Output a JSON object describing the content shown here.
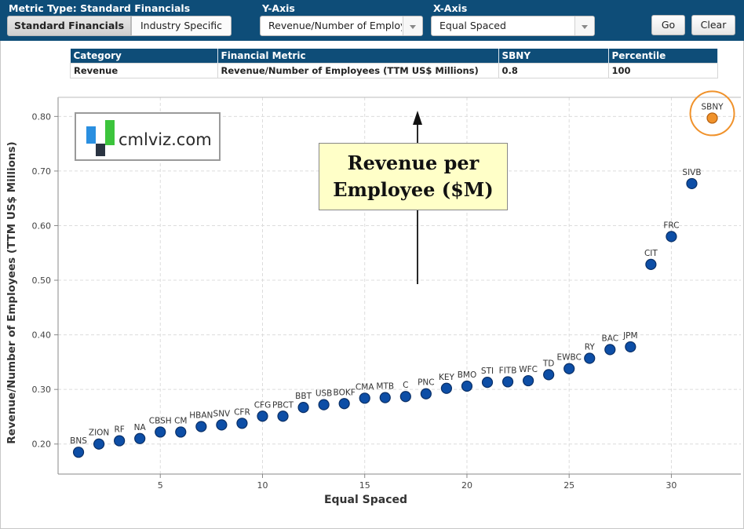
{
  "toolbar": {
    "metric_type_label": "Metric Type: Standard Financials",
    "yaxis_label": "Y-Axis",
    "xaxis_label": "X-Axis",
    "tab_standard": "Standard Financials",
    "tab_industry": "Industry Specific",
    "yaxis_value": "Revenue/Number of Employees (TTM US$ Millions)",
    "xaxis_value": "Equal Spaced",
    "go_label": "Go",
    "clear_label": "Clear"
  },
  "table": {
    "headers": [
      "Category",
      "Financial Metric",
      "SBNY",
      "Percentile"
    ],
    "row": [
      "Revenue",
      "Revenue/Number of Employees (TTM US$ Millions)",
      "0.8",
      "100"
    ]
  },
  "logo": {
    "text": "cmlviz.com"
  },
  "annotation": {
    "line1": "Revenue per",
    "line2": "Employee ($M)"
  },
  "colors": {
    "point": "#0d4ea6",
    "highlight": "#f0922b",
    "header": "#0e4d78",
    "annotation_bg": "#ffffc8"
  },
  "chart_data": {
    "type": "scatter",
    "xlabel": "Equal Spaced",
    "ylabel": "Revenue/Number of Employees (TTM US$ Millions)",
    "xlim": [
      0,
      33.4
    ],
    "ylim": [
      0.145,
      0.835
    ],
    "xticks": [
      5,
      10,
      15,
      20,
      25,
      30
    ],
    "yticks": [
      0.2,
      0.3,
      0.4,
      0.5,
      0.6,
      0.7,
      0.8
    ],
    "ytick_labels": [
      "0.20",
      "0.30",
      "0.40",
      "0.50",
      "0.60",
      "0.70",
      "0.80"
    ],
    "grid": true,
    "highlight": "SBNY",
    "points": [
      {
        "label": "BNS",
        "x": 1,
        "y": 0.185
      },
      {
        "label": "ZION",
        "x": 2,
        "y": 0.2
      },
      {
        "label": "RF",
        "x": 3,
        "y": 0.206
      },
      {
        "label": "NA",
        "x": 4,
        "y": 0.21
      },
      {
        "label": "CBSH",
        "x": 5,
        "y": 0.222
      },
      {
        "label": "CM",
        "x": 6,
        "y": 0.222
      },
      {
        "label": "HBAN",
        "x": 7,
        "y": 0.232
      },
      {
        "label": "SNV",
        "x": 8,
        "y": 0.235
      },
      {
        "label": "CFR",
        "x": 9,
        "y": 0.238
      },
      {
        "label": "CFG",
        "x": 10,
        "y": 0.251
      },
      {
        "label": "PBCT",
        "x": 11,
        "y": 0.251
      },
      {
        "label": "BBT",
        "x": 12,
        "y": 0.267
      },
      {
        "label": "USB",
        "x": 13,
        "y": 0.272
      },
      {
        "label": "BOKF",
        "x": 14,
        "y": 0.274
      },
      {
        "label": "CMA",
        "x": 15,
        "y": 0.284
      },
      {
        "label": "MTB",
        "x": 16,
        "y": 0.285
      },
      {
        "label": "C",
        "x": 17,
        "y": 0.287
      },
      {
        "label": "PNC",
        "x": 18,
        "y": 0.292
      },
      {
        "label": "KEY",
        "x": 19,
        "y": 0.302
      },
      {
        "label": "BMO",
        "x": 20,
        "y": 0.306
      },
      {
        "label": "STI",
        "x": 21,
        "y": 0.313
      },
      {
        "label": "FITB",
        "x": 22,
        "y": 0.314
      },
      {
        "label": "WFC",
        "x": 23,
        "y": 0.316
      },
      {
        "label": "TD",
        "x": 24,
        "y": 0.327
      },
      {
        "label": "EWBC",
        "x": 25,
        "y": 0.338
      },
      {
        "label": "RY",
        "x": 26,
        "y": 0.357
      },
      {
        "label": "BAC",
        "x": 27,
        "y": 0.373
      },
      {
        "label": "JPM",
        "x": 28,
        "y": 0.378
      },
      {
        "label": "CIT",
        "x": 29,
        "y": 0.529
      },
      {
        "label": "FRC",
        "x": 30,
        "y": 0.58
      },
      {
        "label": "SIVB",
        "x": 31,
        "y": 0.677
      },
      {
        "label": "SBNY",
        "x": 32,
        "y": 0.797
      }
    ]
  }
}
